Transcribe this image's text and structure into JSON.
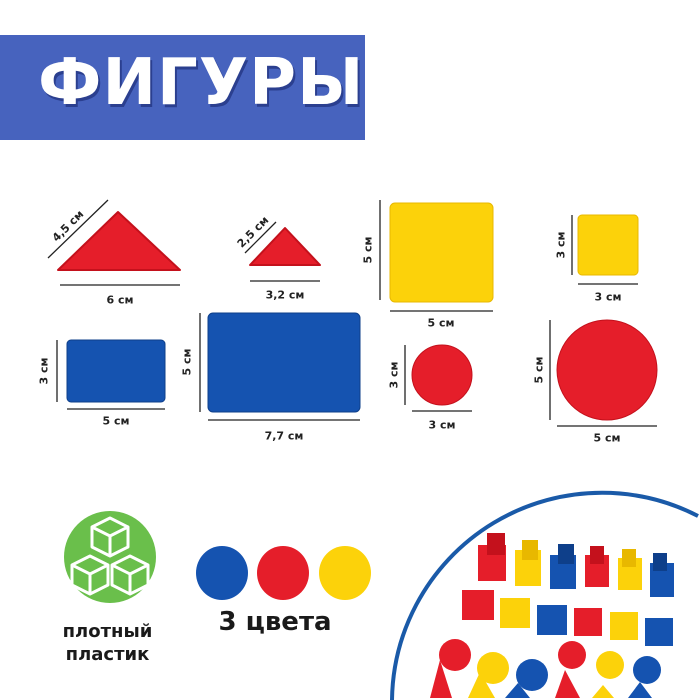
{
  "title": "ФИГУРЫ",
  "colors": {
    "banner": "#4763be",
    "red": "#e51e2a",
    "blue": "#1553b0",
    "yellow": "#fcd20a",
    "green": "#6abf4b",
    "ring": "#1a5aa8"
  },
  "shapes": [
    {
      "name": "large-triangle",
      "labels": [
        "4,5 см",
        "6 см"
      ]
    },
    {
      "name": "small-triangle",
      "labels": [
        "2,5 см",
        "3,2 см"
      ]
    },
    {
      "name": "large-square",
      "labels": [
        "5 см",
        "5 см"
      ]
    },
    {
      "name": "small-square",
      "labels": [
        "3 см",
        "3 см"
      ]
    },
    {
      "name": "small-rectangle",
      "labels": [
        "3 см",
        "5 см"
      ]
    },
    {
      "name": "large-rectangle",
      "labels": [
        "5 см",
        "7,7 см"
      ]
    },
    {
      "name": "small-circle",
      "labels": [
        "3 см",
        "3 см"
      ]
    },
    {
      "name": "large-circle",
      "labels": [
        "5 см",
        "5 см"
      ]
    }
  ],
  "features": {
    "material": {
      "icon": "cubes-icon",
      "line1": "плотный",
      "line2": "пластик"
    },
    "colors": {
      "label": "3 цвета"
    }
  }
}
